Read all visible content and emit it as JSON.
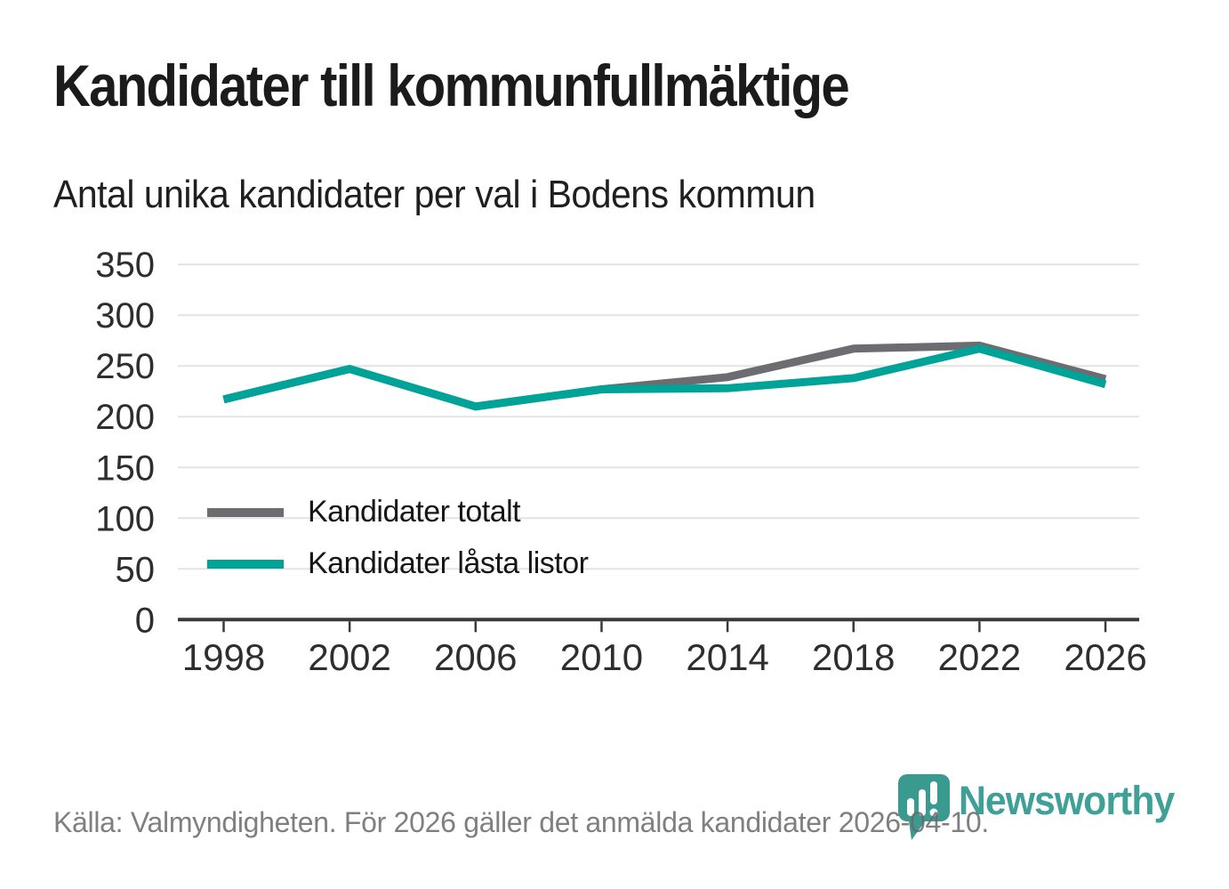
{
  "chart_data": {
    "type": "line",
    "title": "Kandidater till kommunfullmäktige",
    "subtitle": "Antal unika kandidater per val i Bodens kommun",
    "x": [
      1998,
      2002,
      2006,
      2010,
      2014,
      2018,
      2022,
      2026
    ],
    "xtick_labels": [
      "1998",
      "2002",
      "2006",
      "2010",
      "2014",
      "2018",
      "2022",
      "2026"
    ],
    "series": [
      {
        "name": "Kandidater totalt",
        "color": "#6c6c71",
        "values": [
          217,
          247,
          210,
          227,
          239,
          267,
          270,
          237
        ]
      },
      {
        "name": "Kandidater låsta listor",
        "color": "#00a398",
        "values": [
          217,
          247,
          210,
          227,
          228,
          238,
          267,
          232
        ]
      }
    ],
    "ylim": [
      0,
      350
    ],
    "yticks": [
      0,
      50,
      100,
      150,
      200,
      250,
      300,
      350
    ],
    "grid": true,
    "legend_position": "inside-left",
    "xlabel": "",
    "ylabel": ""
  },
  "footer": {
    "source_text": "Källa: Valmyndigheten. För 2026 gäller det anmälda kandidater 2026-04-10."
  },
  "logo": {
    "text": "Newsworthy",
    "icon": "newsworthy-pin-barchart-icon",
    "color": "#3fa098",
    "icon_color": "#3a9a90"
  },
  "colors": {
    "gridline": "#e4e4e4",
    "axis": "#3a3a3a",
    "tick_text": "#2e2e2e",
    "title_text": "#1b1b1b",
    "muted_text": "#696969"
  }
}
